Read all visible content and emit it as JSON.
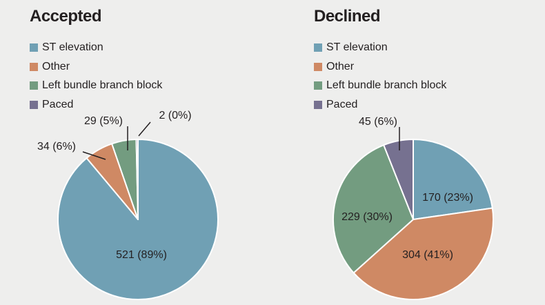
{
  "colors": {
    "ST elevation": "#70a0b4",
    "Other": "#cf8964",
    "Left bundle branch block": "#739c80",
    "Paced": "#767190"
  },
  "chart_data": [
    {
      "type": "pie",
      "title": "Accepted",
      "legend": [
        "ST elevation",
        "Other",
        "Left bundle branch block",
        "Paced"
      ],
      "legend_position": "top-left",
      "start": "12 o'clock, counter-clockwise for trailing slices",
      "slices": [
        {
          "label": "ST elevation",
          "value": 521,
          "percent": 89,
          "text": "521 (89%)"
        },
        {
          "label": "Other",
          "value": 34,
          "percent": 6,
          "text": "34 (6%)"
        },
        {
          "label": "Left bundle branch block",
          "value": 29,
          "percent": 5,
          "text": "29 (5%)"
        },
        {
          "label": "Paced",
          "value": 2,
          "percent": 0,
          "text": "2 (0%)"
        }
      ]
    },
    {
      "type": "pie",
      "title": "Declined",
      "legend": [
        "ST elevation",
        "Other",
        "Left bundle branch block",
        "Paced"
      ],
      "legend_position": "top-left",
      "slices": [
        {
          "label": "ST elevation",
          "value": 170,
          "percent": 23,
          "text": "170 (23%)"
        },
        {
          "label": "Other",
          "value": 304,
          "percent": 41,
          "text": "304 (41%)"
        },
        {
          "label": "Left bundle branch block",
          "value": 229,
          "percent": 30,
          "text": "229 (30%)"
        },
        {
          "label": "Paced",
          "value": 45,
          "percent": 6,
          "text": "45 (6%)"
        }
      ]
    }
  ]
}
